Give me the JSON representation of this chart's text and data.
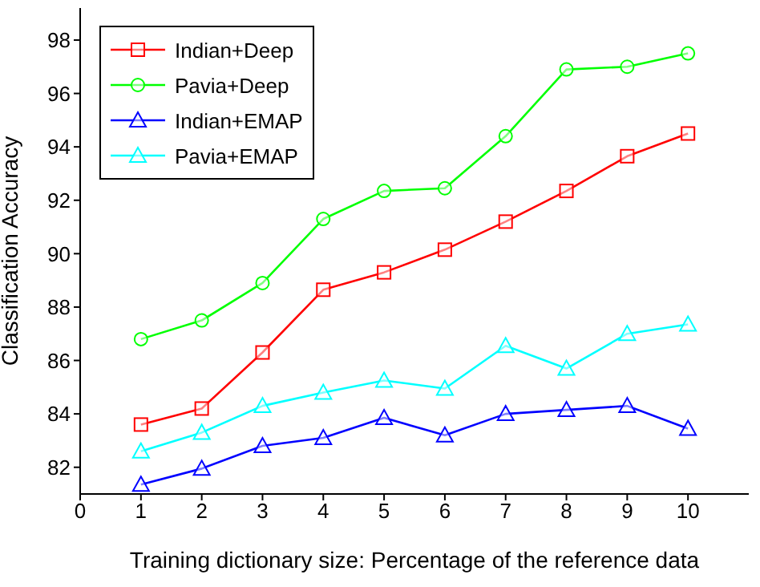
{
  "chart_data": {
    "type": "line",
    "xlabel": "Training dictionary size: Percentage of the reference data",
    "ylabel": "Classification Accuracy",
    "x": [
      1,
      2,
      3,
      4,
      5,
      6,
      7,
      8,
      9,
      10
    ],
    "series": [
      {
        "name": "Indian+Deep",
        "color": "#ff0000",
        "marker": "square",
        "values": [
          83.6,
          84.2,
          86.3,
          88.65,
          89.3,
          90.15,
          91.2,
          92.35,
          93.65,
          94.5
        ]
      },
      {
        "name": "Pavia+Deep",
        "color": "#00ff00",
        "marker": "circle",
        "values": [
          86.8,
          87.5,
          88.9,
          91.3,
          92.35,
          92.45,
          94.4,
          96.9,
          97.0,
          97.5
        ]
      },
      {
        "name": "Indian+EMAP",
        "color": "#0000ff",
        "marker": "triangle",
        "values": [
          81.35,
          81.95,
          82.8,
          83.1,
          83.85,
          83.2,
          84.0,
          84.15,
          84.3,
          83.45
        ]
      },
      {
        "name": "Pavia+EMAP",
        "color": "#00ffff",
        "marker": "triangle",
        "values": [
          82.6,
          83.3,
          84.3,
          84.8,
          85.25,
          84.95,
          86.55,
          85.7,
          87.0,
          87.35
        ]
      }
    ],
    "xlim": [
      0,
      11
    ],
    "xticks": [
      0,
      1,
      2,
      3,
      4,
      5,
      6,
      7,
      8,
      9,
      10
    ],
    "ylim": [
      81,
      99.2
    ],
    "yticks": [
      82,
      84,
      86,
      88,
      90,
      92,
      94,
      96,
      98
    ],
    "grid": false,
    "legend": "top left",
    "line_style": "solid"
  }
}
